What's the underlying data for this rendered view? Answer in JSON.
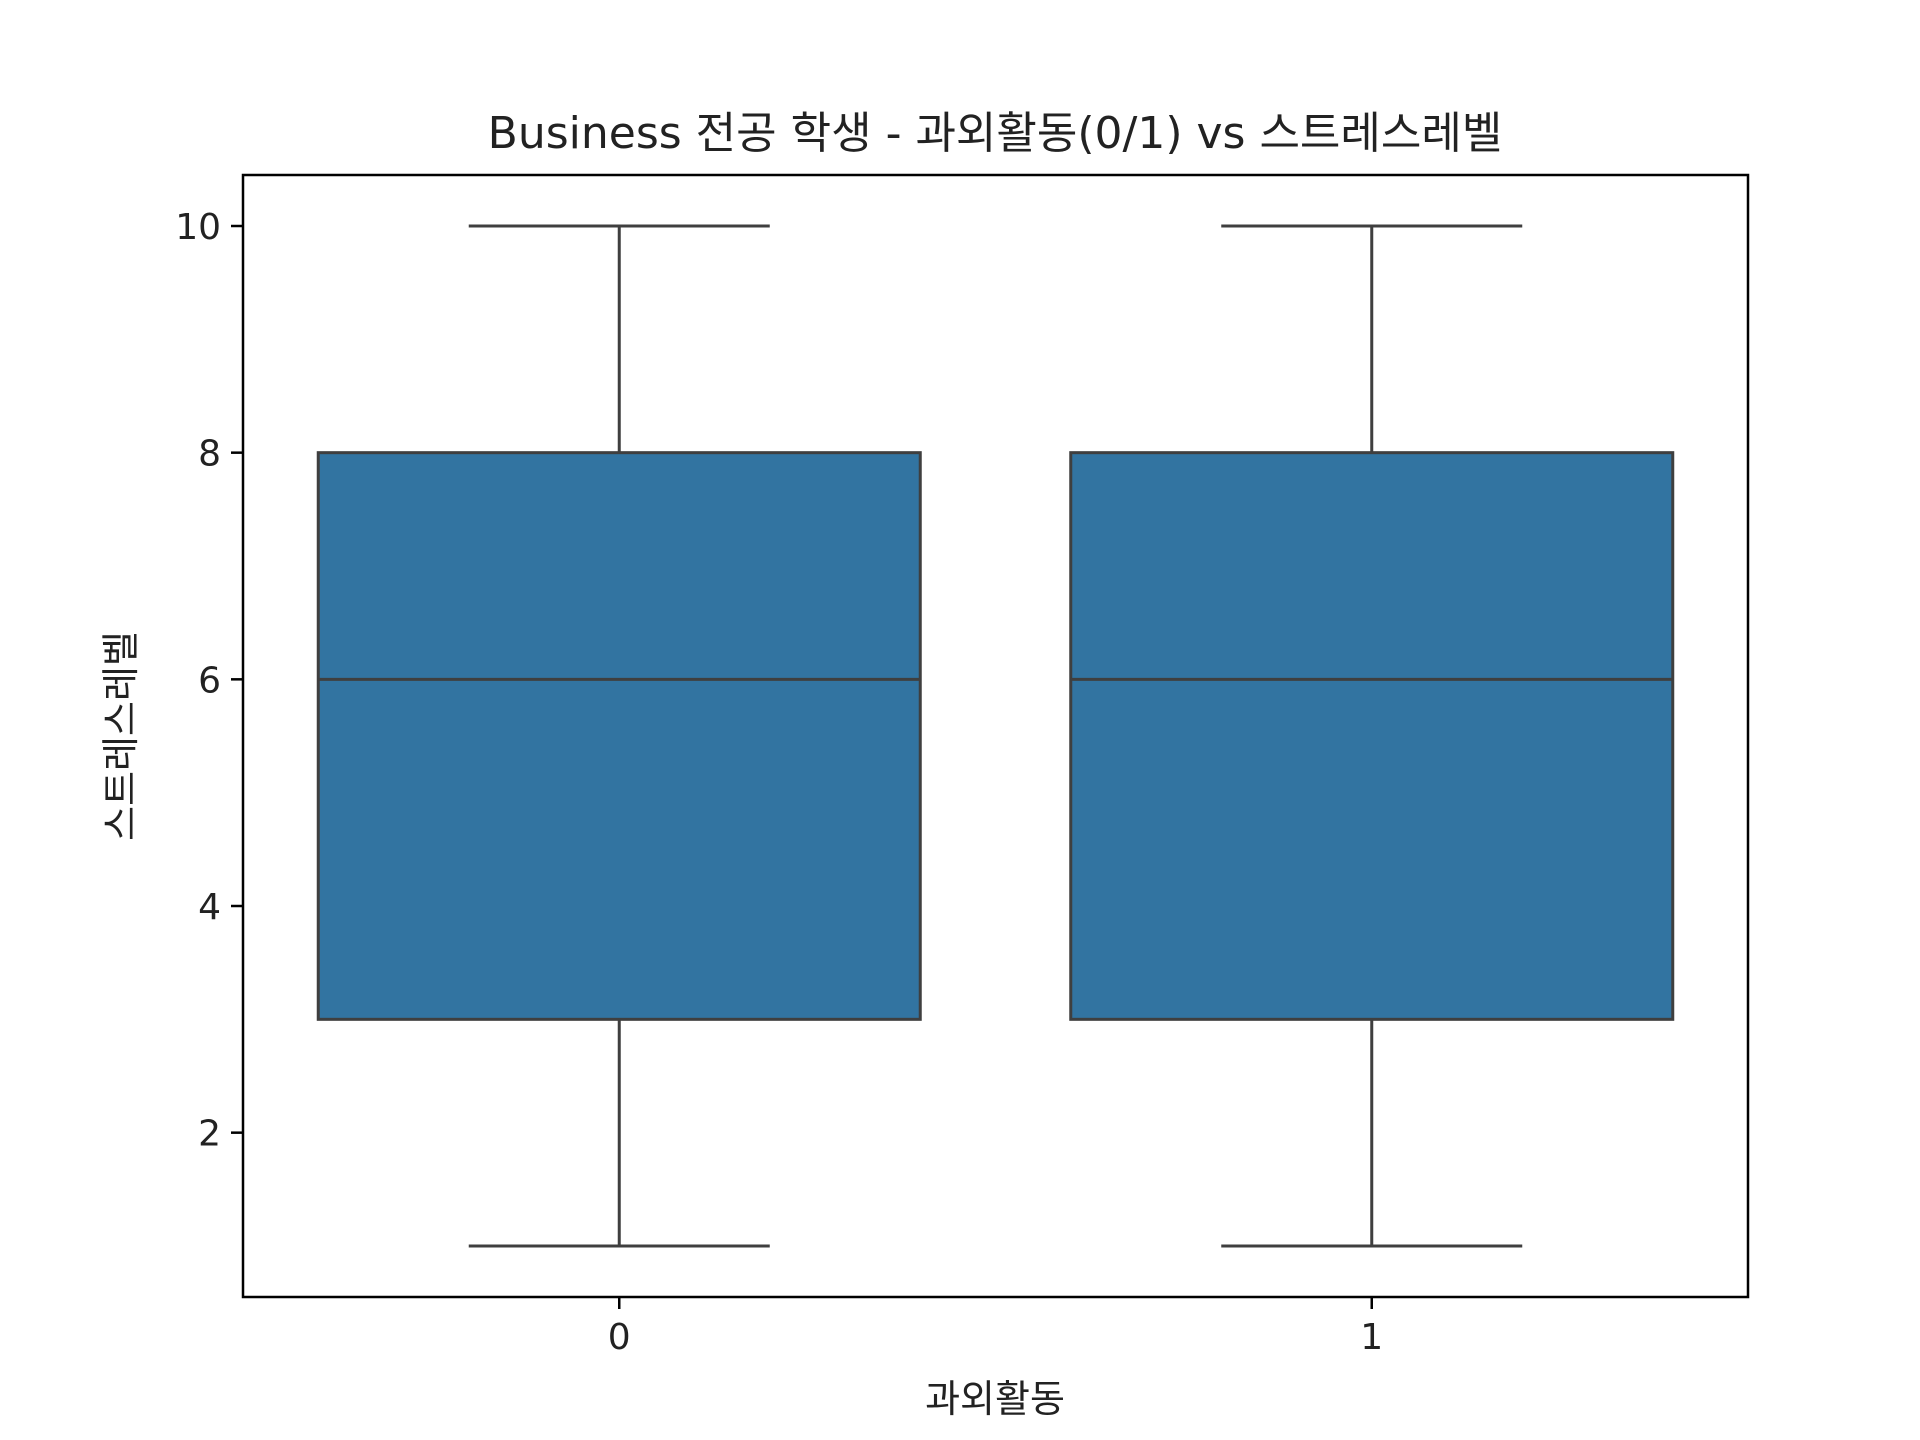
{
  "chart_data": {
    "type": "box",
    "title": "Business 전공 학생 - 과외활동(0/1) vs 스트레스레벨",
    "xlabel": "과외활동",
    "ylabel": "스트레스레벨",
    "categories": [
      "0",
      "1"
    ],
    "ylim": [
      0.55,
      10.45
    ],
    "yticks": [
      2,
      4,
      6,
      8,
      10
    ],
    "yticklabels": [
      "2",
      "4",
      "6",
      "8",
      "10"
    ],
    "boxes": [
      {
        "category": "0",
        "whisker_low": 1,
        "q1": 3,
        "median": 6,
        "q3": 8,
        "whisker_high": 10
      },
      {
        "category": "1",
        "whisker_low": 1,
        "q1": 3,
        "median": 6,
        "q3": 8,
        "whisker_high": 10
      }
    ],
    "grid": false,
    "colors": {
      "box_fill": "#3274a1",
      "box_line": "#3f3f3f",
      "axes": "#000000"
    }
  }
}
